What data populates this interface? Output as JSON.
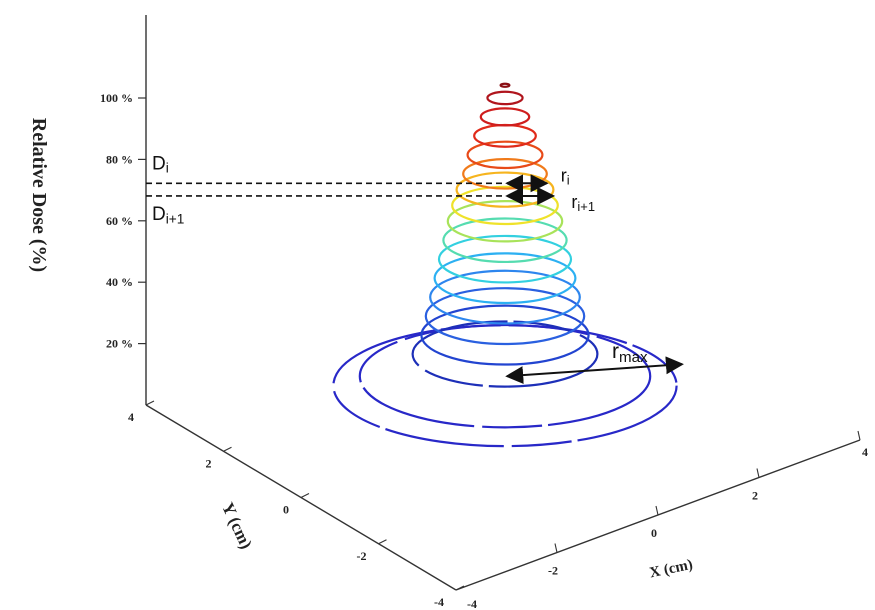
{
  "chart_data": {
    "type": "3d-contour",
    "z_axis": {
      "label": "Relative Dose (%)",
      "ticks": [
        "20 %",
        "40 %",
        "60 %",
        "80 %",
        "100 %"
      ],
      "values": [
        20,
        40,
        60,
        80,
        100
      ]
    },
    "x_axis": {
      "label": "X (cm)",
      "ticks": [
        "-2",
        "0",
        "2"
      ],
      "values": [
        -2,
        0,
        2
      ]
    },
    "y_axis": {
      "label": "Y (cm)",
      "ticks": [
        "-4",
        "-2",
        "0",
        "2",
        "4"
      ],
      "values": [
        -4,
        -2,
        0,
        2,
        4
      ]
    },
    "corner_labels": {
      "x_end": "4",
      "origin_x": "-4"
    },
    "contours": [
      {
        "dose": 2,
        "radius": 3.9,
        "color": "#2828c8"
      },
      {
        "dose": 5,
        "radius": 3.3,
        "color": "#2828c8"
      },
      {
        "dose": 12,
        "radius": 2.1,
        "color": "#1d2fb8"
      },
      {
        "dose": 18,
        "radius": 1.9,
        "color": "#2244d0"
      },
      {
        "dose": 24,
        "radius": 1.8,
        "color": "#2a60e0"
      },
      {
        "dose": 30,
        "radius": 1.7,
        "color": "#2d86ee"
      },
      {
        "dose": 36,
        "radius": 1.6,
        "color": "#2cb0f2"
      },
      {
        "dose": 42,
        "radius": 1.5,
        "color": "#33d0e0"
      },
      {
        "dose": 48,
        "radius": 1.4,
        "color": "#55dcb0"
      },
      {
        "dose": 54,
        "radius": 1.3,
        "color": "#a8e35a"
      },
      {
        "dose": 59,
        "radius": 1.2,
        "color": "#efe22a"
      },
      {
        "dose": 64,
        "radius": 1.1,
        "color": "#f6b41e"
      },
      {
        "dose": 69,
        "radius": 0.95,
        "color": "#f07a1a"
      },
      {
        "dose": 75,
        "radius": 0.85,
        "color": "#e84a18"
      },
      {
        "dose": 81,
        "radius": 0.7,
        "color": "#e02a1a"
      },
      {
        "dose": 87,
        "radius": 0.55,
        "color": "#cf1d1d"
      },
      {
        "dose": 93,
        "radius": 0.4,
        "color": "#b0151d"
      },
      {
        "dose": 97,
        "radius": 0.1,
        "color": "#8a0f14"
      }
    ],
    "annotations": {
      "d_i": {
        "label": "D",
        "sub": "i",
        "dose": 66
      },
      "d_i1": {
        "label": "D",
        "sub": "i+1",
        "dose": 62
      },
      "r_i": {
        "label": "r",
        "sub": "i",
        "dose": 66,
        "radius": 0.95
      },
      "r_i1": {
        "label": "r",
        "sub": "i+1",
        "dose": 62,
        "radius": 1.1
      },
      "r_max": {
        "label": "r",
        "sub": "max",
        "dose": 5,
        "radius": 3.3
      }
    }
  }
}
